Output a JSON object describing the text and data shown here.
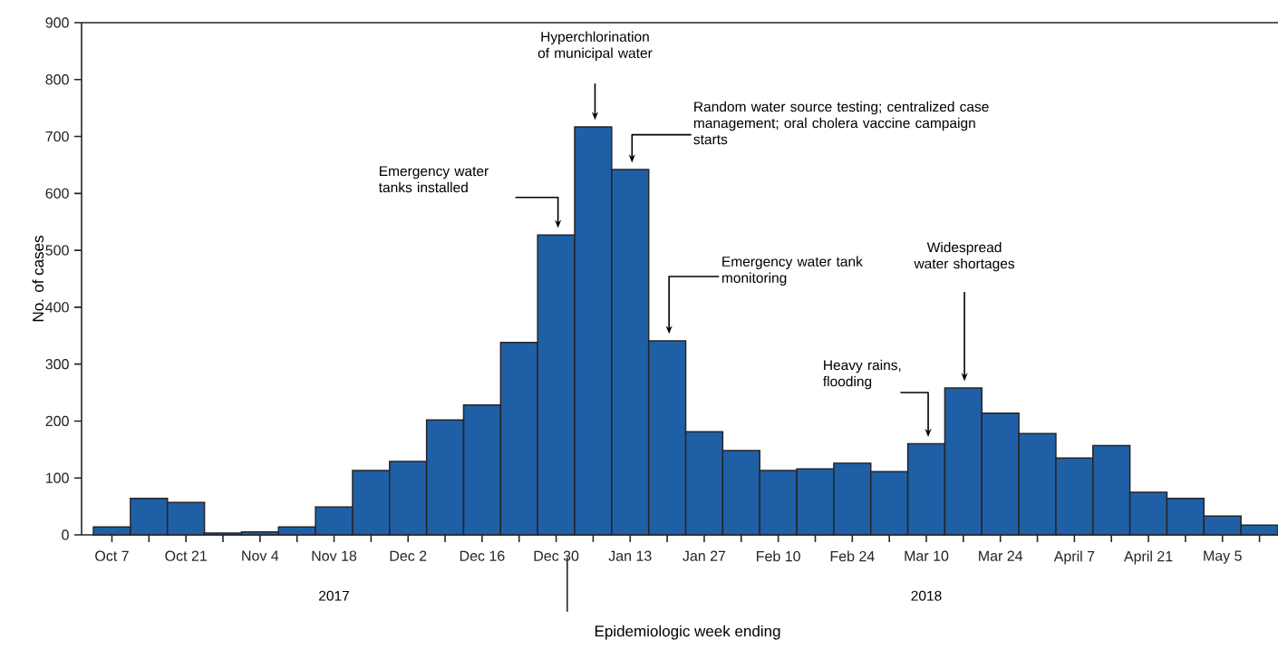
{
  "chart_data": {
    "type": "bar",
    "xlabel": "Epidemiologic week ending",
    "ylabel": "No. of cases",
    "categories": [
      "Oct 7",
      null,
      "Oct 21",
      null,
      "Nov 4",
      null,
      "Nov 18",
      null,
      "Dec 2",
      null,
      "Dec 16",
      null,
      "Dec 30",
      null,
      "Jan 13",
      null,
      "Jan 27",
      null,
      "Feb 10",
      null,
      "Feb 24",
      null,
      "Mar 10",
      null,
      "Mar 24",
      null,
      "April 7",
      null,
      "April 21",
      null,
      "May 5",
      null
    ],
    "values": [
      14,
      64,
      57,
      3,
      5,
      14,
      49,
      113,
      129,
      202,
      228,
      338,
      527,
      717,
      642,
      341,
      181,
      148,
      113,
      116,
      126,
      111,
      160,
      258,
      214,
      178,
      135,
      157,
      75,
      64,
      33,
      17
    ],
    "color": "#1f5fa6",
    "ylim": [
      0,
      900
    ],
    "yticks": [
      0,
      100,
      200,
      300,
      400,
      500,
      600,
      700,
      800,
      900
    ],
    "grid": false,
    "annotations": [
      "Emergency water tanks installed",
      "Hyperchlorination of municipal water",
      "Random water source testing; centralized case management; oral cholera vaccine campaign starts",
      "Emergency water tank monitoring",
      "Heavy rains, flooding",
      "Widespread water shortages",
      "2017",
      "2018"
    ]
  }
}
